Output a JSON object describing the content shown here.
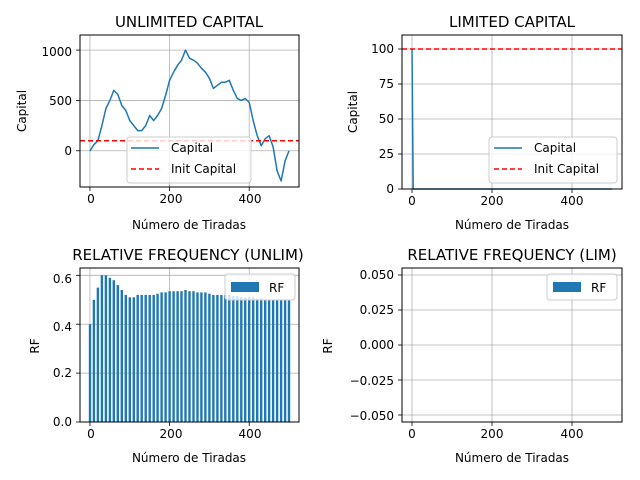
{
  "chart_data": [
    {
      "type": "line",
      "title": "UNLIMITED CAPITAL",
      "xlabel": "Número de Tiradas",
      "ylabel": "Capital",
      "xlim": [
        -25,
        525
      ],
      "ylim": [
        -360,
        1150
      ],
      "xticks": [
        0,
        200,
        400
      ],
      "yticks": [
        0,
        500,
        1000
      ],
      "grid": true,
      "legend_position": "bottom-center",
      "series": [
        {
          "name": "Capital",
          "color": "#1f77b4",
          "x": [
            0,
            10,
            20,
            30,
            40,
            50,
            60,
            70,
            80,
            90,
            100,
            110,
            120,
            130,
            140,
            150,
            160,
            170,
            180,
            190,
            200,
            210,
            220,
            230,
            240,
            250,
            260,
            270,
            280,
            290,
            300,
            310,
            320,
            330,
            340,
            350,
            360,
            370,
            380,
            390,
            400,
            410,
            420,
            430,
            440,
            450,
            460,
            470,
            480,
            490,
            500
          ],
          "values": [
            0,
            60,
            100,
            250,
            420,
            500,
            600,
            560,
            450,
            400,
            300,
            250,
            200,
            200,
            250,
            350,
            300,
            350,
            420,
            550,
            700,
            780,
            850,
            900,
            1000,
            920,
            900,
            870,
            820,
            780,
            720,
            620,
            650,
            680,
            680,
            700,
            600,
            520,
            500,
            520,
            480,
            300,
            150,
            50,
            120,
            150,
            40,
            -200,
            -300,
            -100,
            0
          ]
        }
      ],
      "reference_lines": [
        {
          "name": "Init Capital",
          "y": 100,
          "color": "#ff0000",
          "style": "dashed"
        }
      ]
    },
    {
      "type": "line",
      "title": "LIMITED CAPITAL",
      "xlabel": "Número de Tiradas",
      "ylabel": "Capital",
      "xlim": [
        -25,
        525
      ],
      "ylim": [
        0,
        110
      ],
      "xticks": [
        0,
        200,
        400
      ],
      "yticks": [
        0,
        25,
        50,
        75,
        100
      ],
      "grid": true,
      "legend_position": "bottom-right",
      "series": [
        {
          "name": "Capital",
          "color": "#1f77b4",
          "x": [
            0,
            3,
            500
          ],
          "values": [
            100,
            0,
            0
          ]
        }
      ],
      "reference_lines": [
        {
          "name": "Init Capital",
          "y": 100,
          "color": "#ff0000",
          "style": "dashed"
        }
      ]
    },
    {
      "type": "bar",
      "title": "RELATIVE FREQUENCY (UNLIM)",
      "xlabel": "Número de Tiradas",
      "ylabel": "RF",
      "xlim": [
        -25,
        525
      ],
      "ylim": [
        0,
        0.63
      ],
      "xticks": [
        0,
        200,
        400
      ],
      "yticks": [
        0.0,
        0.2,
        0.4,
        0.6
      ],
      "grid": true,
      "legend_position": "top-right",
      "series": [
        {
          "name": "RF",
          "color": "#1f77b4",
          "x": [
            0,
            10,
            20,
            30,
            40,
            50,
            60,
            70,
            80,
            90,
            100,
            110,
            120,
            130,
            140,
            150,
            160,
            170,
            180,
            190,
            200,
            210,
            220,
            230,
            240,
            250,
            260,
            270,
            280,
            290,
            300,
            310,
            320,
            330,
            340,
            350,
            360,
            370,
            380,
            390,
            400,
            410,
            420,
            430,
            440,
            450,
            460,
            470,
            480,
            490,
            500
          ],
          "values": [
            0.4,
            0.5,
            0.55,
            0.6,
            0.6,
            0.59,
            0.58,
            0.56,
            0.54,
            0.52,
            0.51,
            0.51,
            0.52,
            0.52,
            0.52,
            0.52,
            0.52,
            0.525,
            0.53,
            0.53,
            0.535,
            0.535,
            0.535,
            0.535,
            0.54,
            0.535,
            0.535,
            0.53,
            0.53,
            0.53,
            0.525,
            0.52,
            0.52,
            0.52,
            0.52,
            0.52,
            0.515,
            0.515,
            0.51,
            0.51,
            0.51,
            0.51,
            0.505,
            0.505,
            0.5,
            0.5,
            0.5,
            0.5,
            0.5,
            0.5,
            0.5
          ]
        }
      ]
    },
    {
      "type": "bar",
      "title": "RELATIVE FREQUENCY (LIM)",
      "xlabel": "Número de Tiradas",
      "ylabel": "RF",
      "xlim": [
        -25,
        525
      ],
      "ylim": [
        -0.055,
        0.055
      ],
      "xticks": [
        0,
        200,
        400
      ],
      "yticks": [
        -0.05,
        -0.025,
        0.0,
        0.025,
        0.05
      ],
      "grid": true,
      "legend_position": "top-right",
      "series": [
        {
          "name": "RF",
          "color": "#1f77b4",
          "x": [],
          "values": []
        }
      ]
    }
  ],
  "panels": [
    {
      "title": "UNLIMITED CAPITAL",
      "xlabel": "Número de Tiradas",
      "ylabel": "Capital",
      "xtick_labels": [
        "0",
        "200",
        "400"
      ],
      "ytick_labels": [
        "0",
        "500",
        "1000"
      ],
      "legend": [
        "Capital",
        "Init Capital"
      ]
    },
    {
      "title": "LIMITED CAPITAL",
      "xlabel": "Número de Tiradas",
      "ylabel": "Capital",
      "xtick_labels": [
        "0",
        "200",
        "400"
      ],
      "ytick_labels": [
        "0",
        "25",
        "50",
        "75",
        "100"
      ],
      "legend": [
        "Capital",
        "Init Capital"
      ]
    },
    {
      "title": "RELATIVE FREQUENCY (UNLIM)",
      "xlabel": "Número de Tiradas",
      "ylabel": "RF",
      "xtick_labels": [
        "0",
        "200",
        "400"
      ],
      "ytick_labels": [
        "0.0",
        "0.2",
        "0.4",
        "0.6"
      ],
      "legend": [
        "RF"
      ]
    },
    {
      "title": "RELATIVE FREQUENCY (LIM)",
      "xlabel": "Número de Tiradas",
      "ylabel": "RF",
      "xtick_labels": [
        "0",
        "200",
        "400"
      ],
      "ytick_labels": [
        "−0.050",
        "−0.025",
        "0.000",
        "0.025",
        "0.050"
      ],
      "legend": [
        "RF"
      ]
    }
  ]
}
